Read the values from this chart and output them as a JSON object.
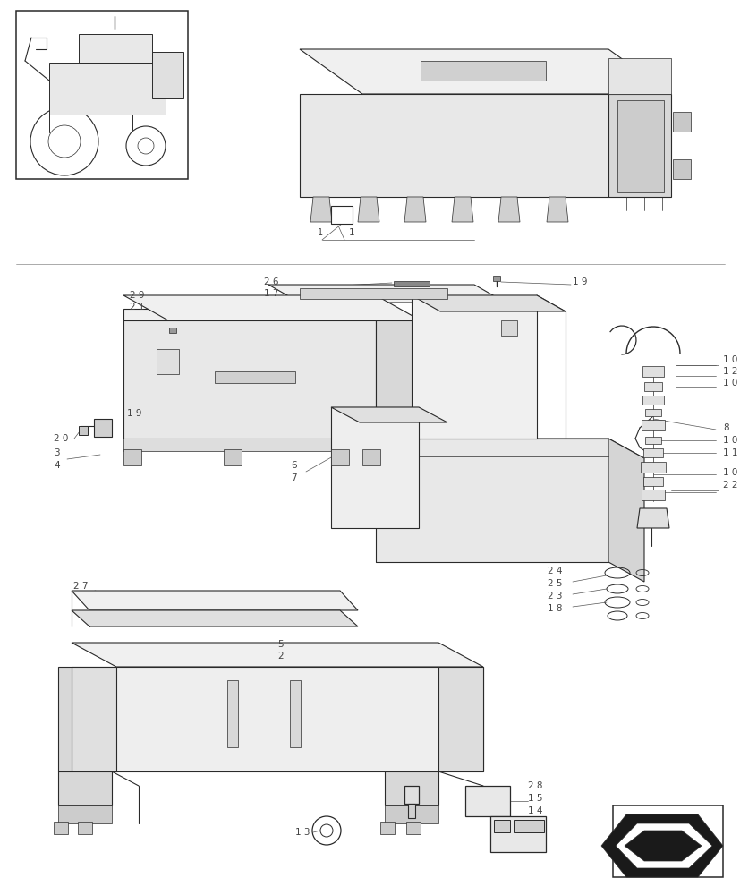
{
  "bg_color": "#ffffff",
  "line_color": "#2a2a2a",
  "label_color": "#444444",
  "fig_width": 8.28,
  "fig_height": 10.0,
  "dpi": 100,
  "lw_main": 0.8,
  "lw_thin": 0.5,
  "lw_thick": 1.1,
  "label_fs": 7.0
}
